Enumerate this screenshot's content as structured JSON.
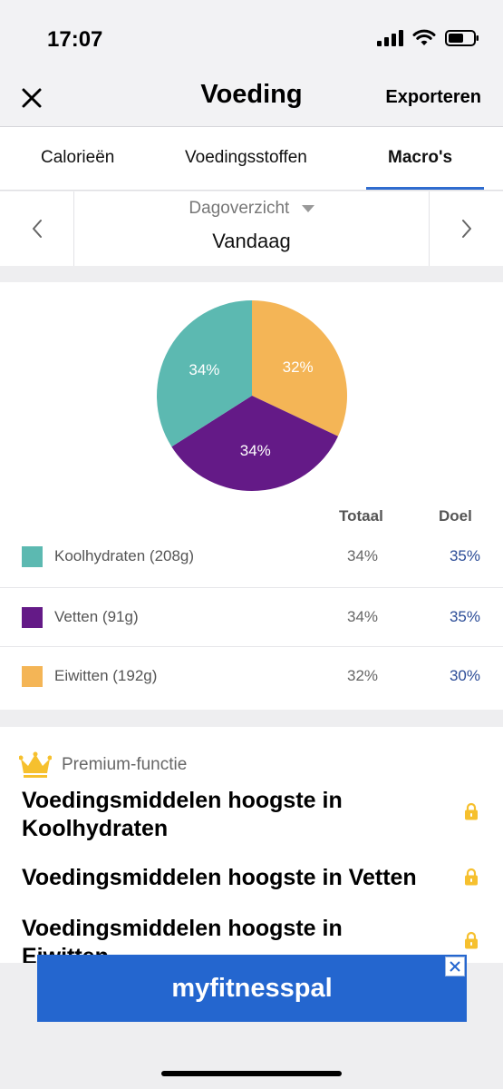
{
  "status_bar": {
    "time": "17:07"
  },
  "navbar": {
    "title": "Voeding",
    "export_label": "Exporteren"
  },
  "tabs": [
    {
      "label": "Calorieën",
      "active": false
    },
    {
      "label": "Voedingsstoffen",
      "active": false
    },
    {
      "label": "Macro's",
      "active": true
    }
  ],
  "date_selector": {
    "label": "Dagoverzicht",
    "value": "Vandaag"
  },
  "chart_data": {
    "type": "pie",
    "slices": [
      {
        "name": "Eiwitten",
        "value": 32,
        "label": "32%",
        "color": "#f4b556"
      },
      {
        "name": "Vetten",
        "value": 34,
        "label": "34%",
        "color": "#641a87"
      },
      {
        "name": "Koolhydraten",
        "value": 34,
        "label": "34%",
        "color": "#5cb9b1"
      }
    ]
  },
  "macros": {
    "header_total": "Totaal",
    "header_goal": "Doel",
    "rows": [
      {
        "label": "Koolhydraten (208g)",
        "total": "34%",
        "goal": "35%",
        "color": "#5cb9b1"
      },
      {
        "label": "Vetten (91g)",
        "total": "34%",
        "goal": "35%",
        "color": "#641a87"
      },
      {
        "label": "Eiwitten (192g)",
        "total": "32%",
        "goal": "30%",
        "color": "#f4b556"
      }
    ]
  },
  "premium": {
    "label": "Premium-functie",
    "items": [
      "Voedingsmiddelen hoogste in Koolhydraten",
      "Voedingsmiddelen hoogste in Vetten",
      "Voedingsmiddelen hoogste in Eiwitten"
    ]
  },
  "ad": {
    "logo_text": "myfitnesspal"
  },
  "colors": {
    "accent": "#2f6ccf",
    "goal_text": "#2b4c97",
    "premium_gold": "#f6c02e",
    "ad_background": "#2466cf"
  }
}
